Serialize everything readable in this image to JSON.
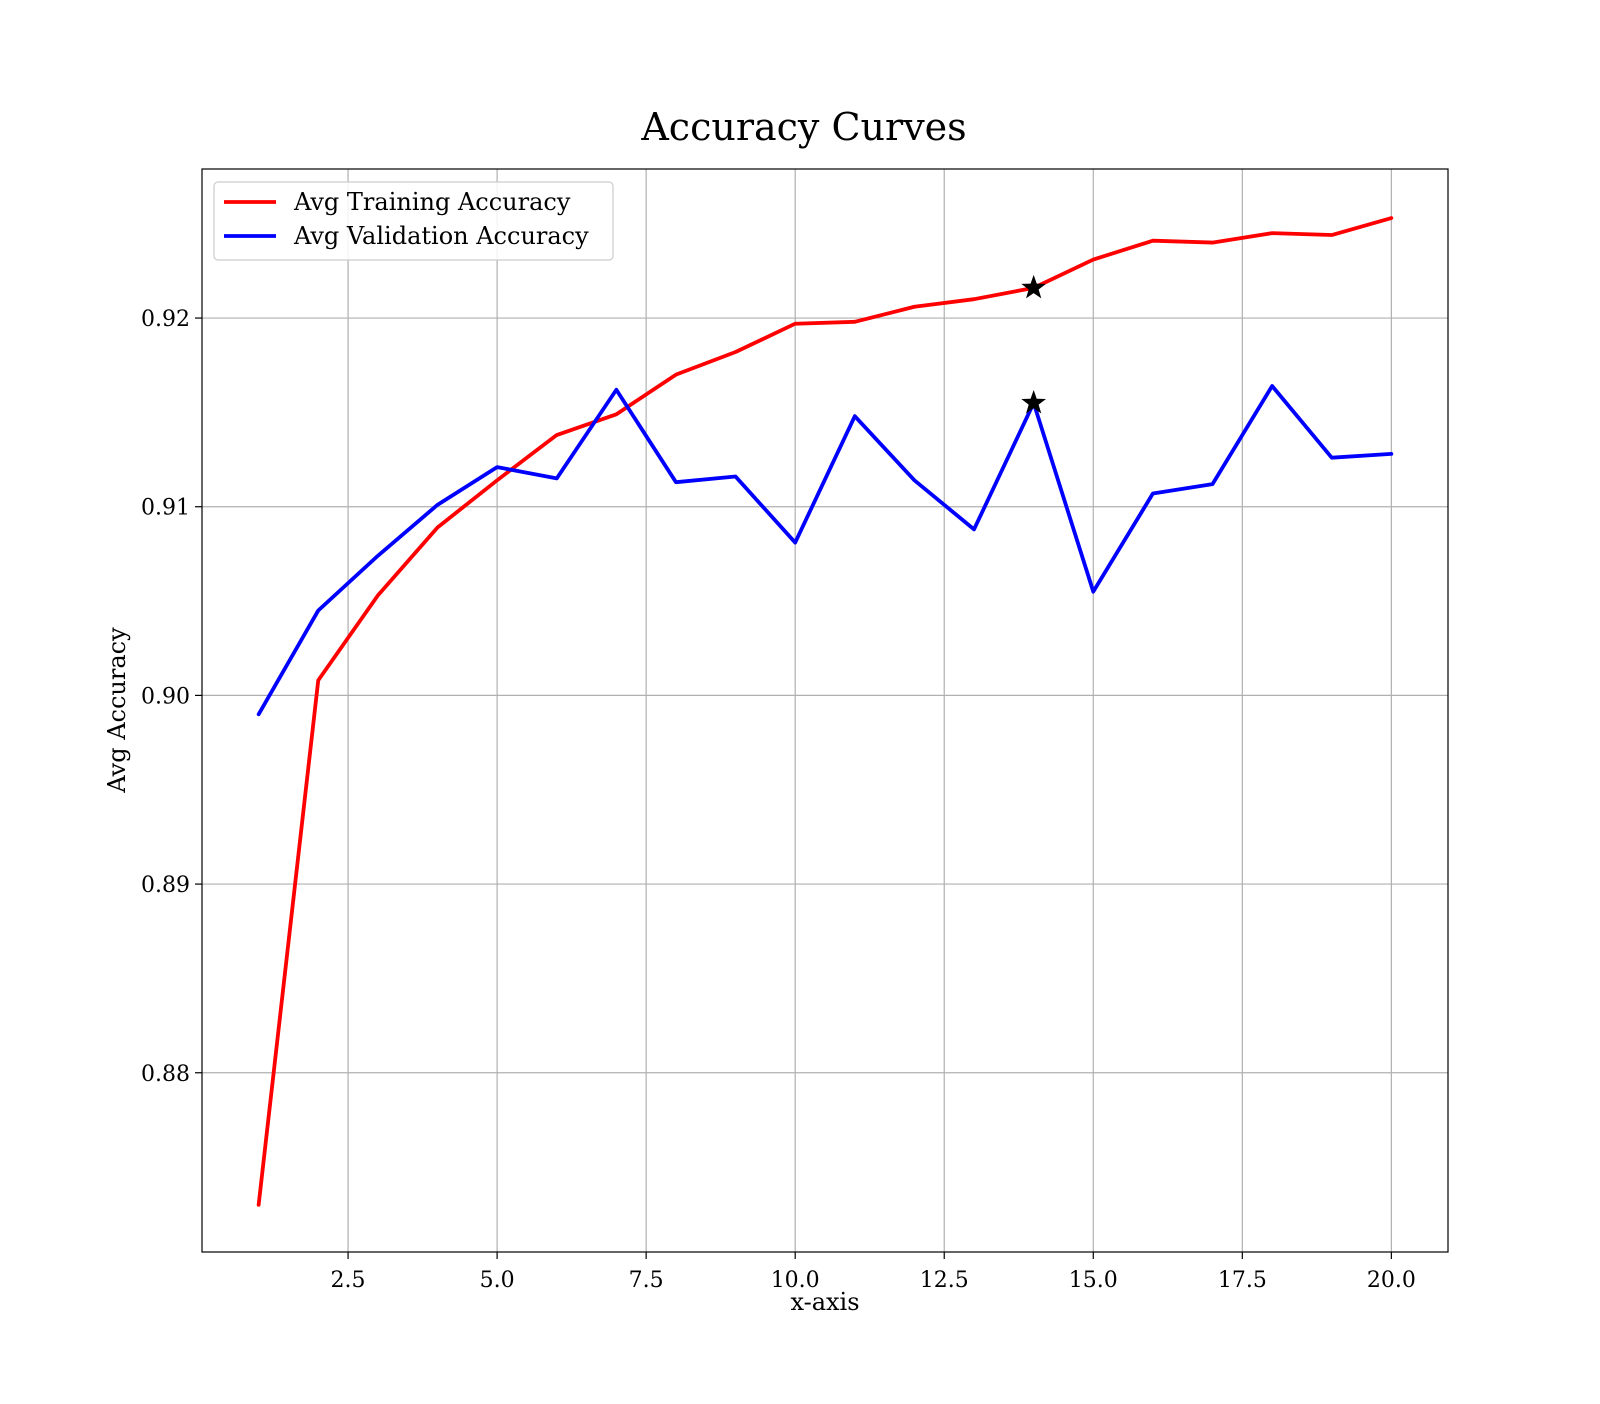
{
  "chart_data": {
    "type": "line",
    "title": "Accuracy Curves",
    "xlabel": "x-axis",
    "ylabel": "Avg Accuracy",
    "xlim": [
      0.05,
      20.95
    ],
    "ylim": [
      0.8705,
      0.9279
    ],
    "x_ticks": [
      2.5,
      5.0,
      7.5,
      10.0,
      12.5,
      15.0,
      17.5,
      20.0
    ],
    "x_tick_labels": [
      "2.5",
      "5.0",
      "7.5",
      "10.0",
      "12.5",
      "15.0",
      "17.5",
      "20.0"
    ],
    "y_ticks": [
      0.88,
      0.89,
      0.9,
      0.91,
      0.92
    ],
    "y_tick_labels": [
      "0.88",
      "0.89",
      "0.90",
      "0.91",
      "0.92"
    ],
    "grid": true,
    "legend_position": "top-left",
    "x": [
      1,
      2,
      3,
      4,
      5,
      6,
      7,
      8,
      9,
      10,
      11,
      12,
      13,
      14,
      15,
      16,
      17,
      18,
      19,
      20
    ],
    "series": [
      {
        "name": "Avg Training Accuracy",
        "color": "#ff0000",
        "values": [
          0.873,
          0.9008,
          0.9053,
          0.9089,
          0.9114,
          0.9138,
          0.9149,
          0.917,
          0.9182,
          0.9197,
          0.9198,
          0.9206,
          0.921,
          0.9216,
          0.9231,
          0.9241,
          0.924,
          0.9245,
          0.9244,
          0.9253
        ]
      },
      {
        "name": "Avg Validation Accuracy",
        "color": "#0000ff",
        "values": [
          0.899,
          0.9045,
          0.9074,
          0.9101,
          0.9121,
          0.9115,
          0.9162,
          0.9113,
          0.9116,
          0.9081,
          0.9148,
          0.9114,
          0.9088,
          0.9155,
          0.9055,
          0.9107,
          0.9112,
          0.9164,
          0.9126,
          0.9128
        ]
      }
    ],
    "markers": [
      {
        "x": 14,
        "y": 0.9216,
        "symbol": "star",
        "color": "#000000"
      },
      {
        "x": 14,
        "y": 0.9155,
        "symbol": "star",
        "color": "#000000"
      }
    ]
  }
}
